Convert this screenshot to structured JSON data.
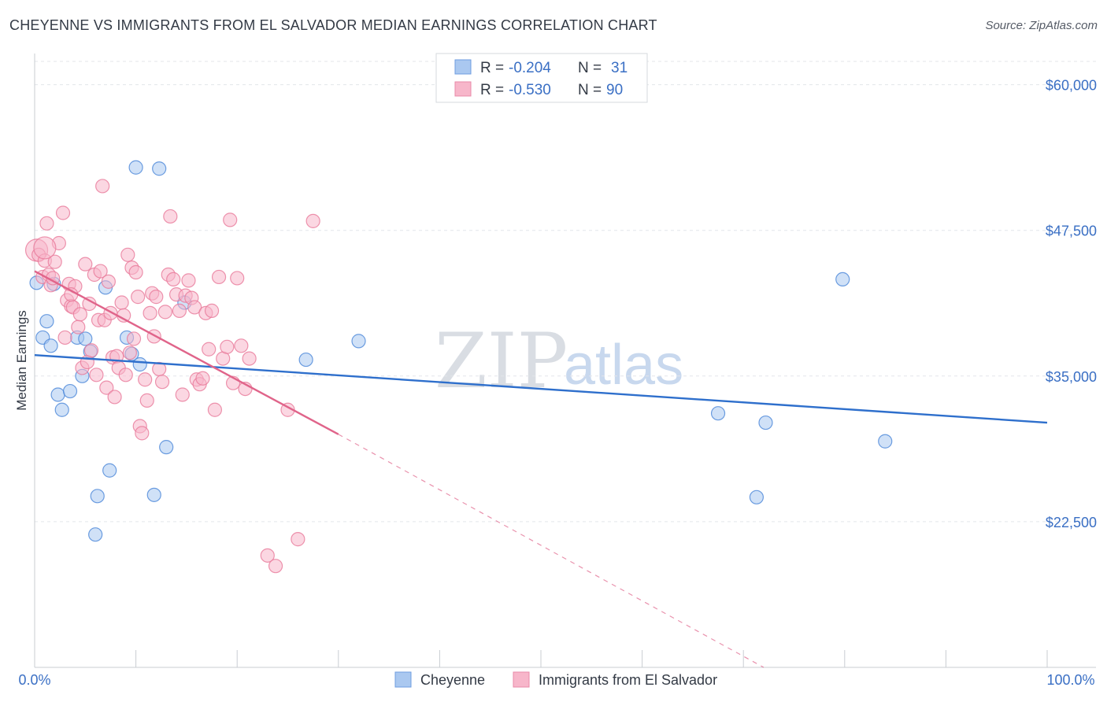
{
  "header": {
    "title": "CHEYENNE VS IMMIGRANTS FROM EL SALVADOR MEDIAN EARNINGS CORRELATION CHART",
    "source": "Source: ZipAtlas.com"
  },
  "watermark": {
    "zip": "ZIP",
    "atlas": "atlas"
  },
  "legend": {
    "rows": [
      {
        "r_label": "R =",
        "r_value": "-0.204",
        "n_label": "N =",
        "n_value": "31",
        "color": "#aac8f0"
      },
      {
        "r_label": "R =",
        "r_value": "-0.530",
        "n_label": "N =",
        "n_value": "90",
        "color": "#f7b6ca"
      }
    ]
  },
  "bottom_legend": {
    "items": [
      {
        "label": "Cheyenne",
        "color": "#aac8f0"
      },
      {
        "label": "Immigrants from El Salvador",
        "color": "#f7b6ca"
      }
    ]
  },
  "chart_data": {
    "type": "scatter",
    "title": "CHEYENNE VS IMMIGRANTS FROM EL SALVADOR MEDIAN EARNINGS CORRELATION CHART",
    "xlabel": "",
    "ylabel": "Median Earnings",
    "xlim": [
      0,
      100
    ],
    "ylim": [
      10000,
      62000
    ],
    "x_tick_labels": [
      "0.0%",
      "100.0%"
    ],
    "y_ticks": [
      22500,
      35000,
      47500,
      60000
    ],
    "y_tick_labels": [
      "$22,500",
      "$35,000",
      "$47,500",
      "$60,000"
    ],
    "grid": true,
    "series": [
      {
        "name": "Cheyenne",
        "color": "#4a86d8",
        "fill": "#aac8f0",
        "trend": {
          "x": [
            0,
            100
          ],
          "y": [
            36800,
            31000
          ],
          "color": "#2e6fcc"
        },
        "points": [
          [
            0.2,
            43000
          ],
          [
            0.8,
            38300
          ],
          [
            1.2,
            39700
          ],
          [
            1.6,
            37600
          ],
          [
            1.9,
            42900
          ],
          [
            2.3,
            33400
          ],
          [
            2.7,
            32100
          ],
          [
            3.5,
            33700
          ],
          [
            4.2,
            38300
          ],
          [
            4.7,
            35000
          ],
          [
            5.0,
            38200
          ],
          [
            5.5,
            37100
          ],
          [
            6.0,
            21400
          ],
          [
            6.2,
            24700
          ],
          [
            7.0,
            42600
          ],
          [
            7.4,
            26900
          ],
          [
            9.1,
            38300
          ],
          [
            9.6,
            36900
          ],
          [
            10.0,
            52900
          ],
          [
            10.4,
            36000
          ],
          [
            11.8,
            24800
          ],
          [
            12.3,
            52800
          ],
          [
            13.0,
            28900
          ],
          [
            14.8,
            41300
          ],
          [
            26.8,
            36400
          ],
          [
            32.0,
            38000
          ],
          [
            67.5,
            31800
          ],
          [
            71.3,
            24600
          ],
          [
            72.2,
            31000
          ],
          [
            79.8,
            43300
          ],
          [
            84.0,
            29400
          ]
        ]
      },
      {
        "name": "Immigrants from El Salvador",
        "color": "#e8799a",
        "fill": "#f7b6ca",
        "trend": {
          "x": [
            0,
            30
          ],
          "y": [
            44000,
            30000
          ],
          "color": "#e0648a",
          "dashed_to": [
            72,
            10000
          ]
        },
        "points": [
          [
            0.2,
            45800
          ],
          [
            0.4,
            45400
          ],
          [
            0.8,
            43500
          ],
          [
            1.0,
            44900
          ],
          [
            1.2,
            48100
          ],
          [
            1.4,
            43700
          ],
          [
            1.6,
            42800
          ],
          [
            1.8,
            43400
          ],
          [
            2.0,
            44800
          ],
          [
            2.4,
            46400
          ],
          [
            2.8,
            49000
          ],
          [
            3.0,
            38300
          ],
          [
            3.2,
            41500
          ],
          [
            3.4,
            42900
          ],
          [
            3.6,
            41000
          ],
          [
            3.8,
            40900
          ],
          [
            4.0,
            42700
          ],
          [
            4.3,
            39200
          ],
          [
            4.5,
            40300
          ],
          [
            4.7,
            35700
          ],
          [
            5.0,
            44600
          ],
          [
            5.2,
            36200
          ],
          [
            5.4,
            41200
          ],
          [
            5.6,
            37200
          ],
          [
            5.9,
            43700
          ],
          [
            6.1,
            35100
          ],
          [
            6.3,
            39800
          ],
          [
            6.5,
            44000
          ],
          [
            6.7,
            51300
          ],
          [
            6.9,
            39800
          ],
          [
            7.1,
            34000
          ],
          [
            7.3,
            43100
          ],
          [
            7.5,
            40400
          ],
          [
            7.7,
            36600
          ],
          [
            7.9,
            33200
          ],
          [
            8.1,
            36700
          ],
          [
            8.3,
            35700
          ],
          [
            8.6,
            41300
          ],
          [
            8.8,
            40200
          ],
          [
            9.0,
            35100
          ],
          [
            9.2,
            45400
          ],
          [
            9.4,
            37000
          ],
          [
            9.6,
            44300
          ],
          [
            9.8,
            38200
          ],
          [
            10.0,
            43900
          ],
          [
            10.2,
            41800
          ],
          [
            10.4,
            30700
          ],
          [
            10.6,
            30100
          ],
          [
            10.9,
            34700
          ],
          [
            11.1,
            32900
          ],
          [
            11.4,
            40400
          ],
          [
            11.6,
            42100
          ],
          [
            11.8,
            38400
          ],
          [
            12.0,
            41800
          ],
          [
            12.3,
            35600
          ],
          [
            12.6,
            34500
          ],
          [
            12.9,
            40500
          ],
          [
            13.2,
            43700
          ],
          [
            13.4,
            48700
          ],
          [
            13.7,
            43300
          ],
          [
            14.0,
            42000
          ],
          [
            14.3,
            40600
          ],
          [
            14.6,
            33400
          ],
          [
            14.9,
            41900
          ],
          [
            15.2,
            43200
          ],
          [
            15.5,
            41700
          ],
          [
            15.8,
            40900
          ],
          [
            16.0,
            34700
          ],
          [
            16.3,
            34300
          ],
          [
            16.6,
            34800
          ],
          [
            16.9,
            40400
          ],
          [
            17.2,
            37300
          ],
          [
            17.5,
            40600
          ],
          [
            17.8,
            32100
          ],
          [
            18.2,
            43500
          ],
          [
            18.6,
            36500
          ],
          [
            19.0,
            37500
          ],
          [
            19.3,
            48400
          ],
          [
            19.6,
            34400
          ],
          [
            20.0,
            43400
          ],
          [
            20.4,
            37600
          ],
          [
            20.8,
            33900
          ],
          [
            21.2,
            36500
          ],
          [
            23.0,
            19600
          ],
          [
            23.8,
            18700
          ],
          [
            25.0,
            32100
          ],
          [
            26.0,
            21000
          ],
          [
            27.5,
            48300
          ],
          [
            3.6,
            42000
          ],
          [
            1.0,
            46000
          ]
        ]
      }
    ]
  }
}
